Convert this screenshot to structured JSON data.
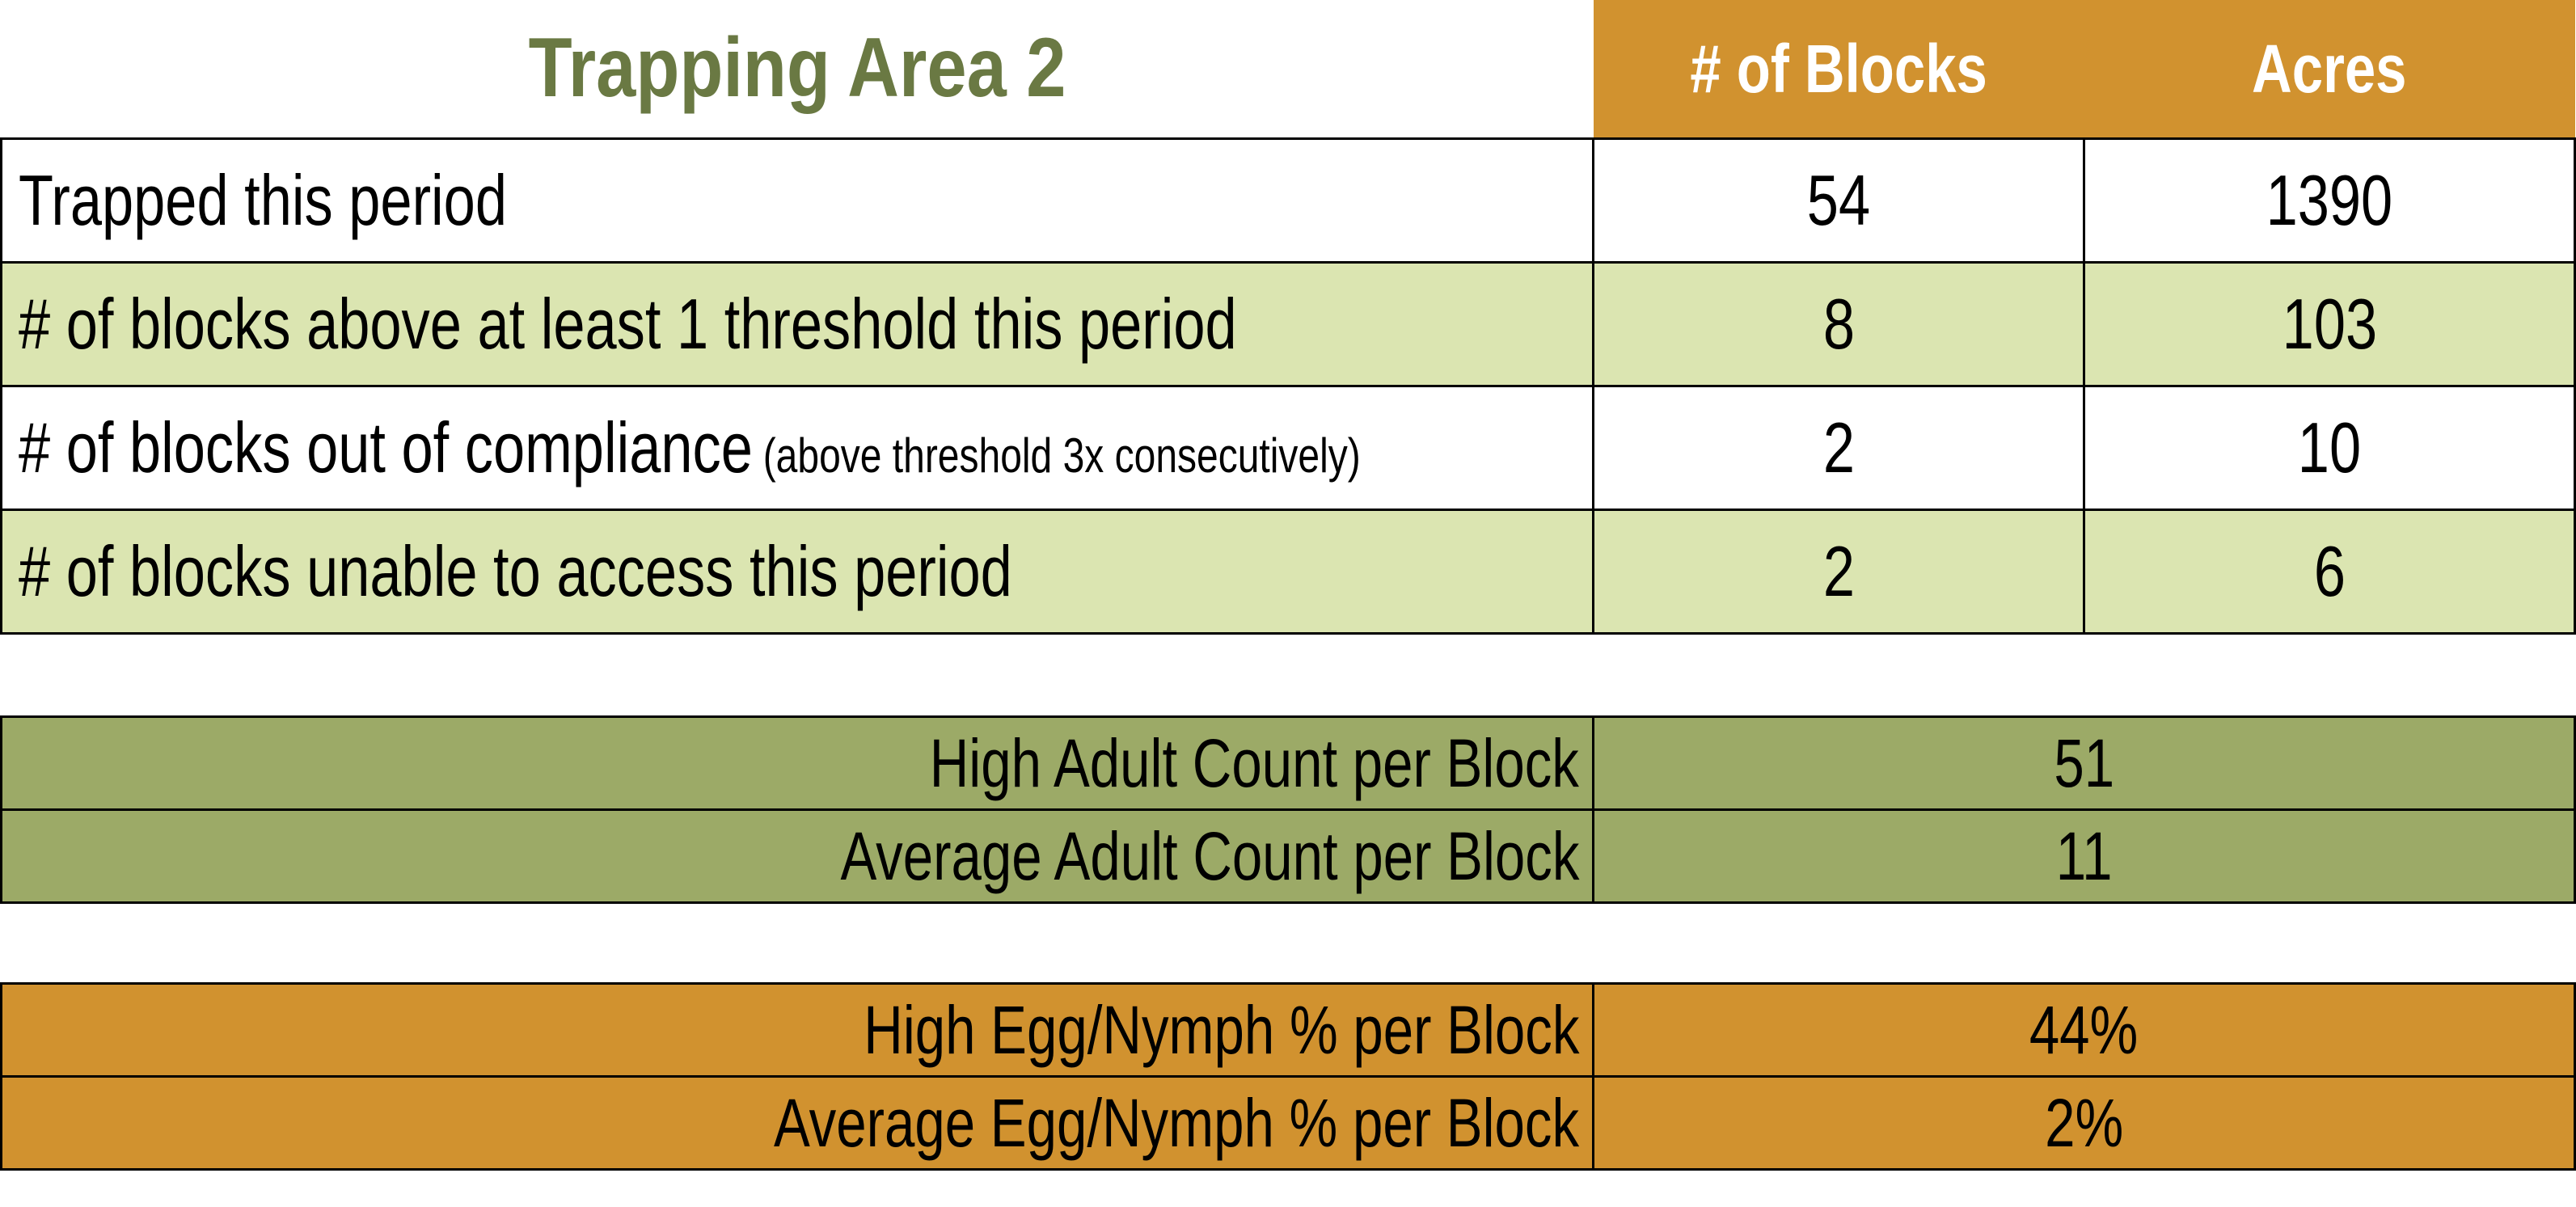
{
  "title": "Trapping Area 2",
  "colors": {
    "title_text": "#6A7943",
    "header_orange": "#D1922F",
    "row_stripe_green": "#DBE5B1",
    "adult_section_olive": "#9CAA67",
    "egg_section_orange": "#D1922F",
    "header_text": "#FFFFFF",
    "border": "#000000"
  },
  "table": {
    "columns": [
      "# of Blocks",
      "Acres"
    ],
    "rows": [
      {
        "label": "Trapped this period",
        "blocks": "54",
        "acres": "1390"
      },
      {
        "label": "# of blocks above at least 1 threshold this period",
        "blocks": "8",
        "acres": "103"
      },
      {
        "label": "# of blocks out of compliance",
        "note": "(above threshold 3x consecutively)",
        "blocks": "2",
        "acres": "10"
      },
      {
        "label": "# of blocks unable to access this period",
        "blocks": "2",
        "acres": "6"
      }
    ]
  },
  "adult_section": {
    "rows": [
      {
        "label": "High Adult Count per Block",
        "value": "51"
      },
      {
        "label": "Average Adult Count per Block",
        "value": "11"
      }
    ]
  },
  "egg_section": {
    "rows": [
      {
        "label": "High Egg/Nymph % per Block",
        "value": "44%"
      },
      {
        "label": "Average Egg/Nymph % per Block",
        "value": "2%"
      }
    ]
  }
}
